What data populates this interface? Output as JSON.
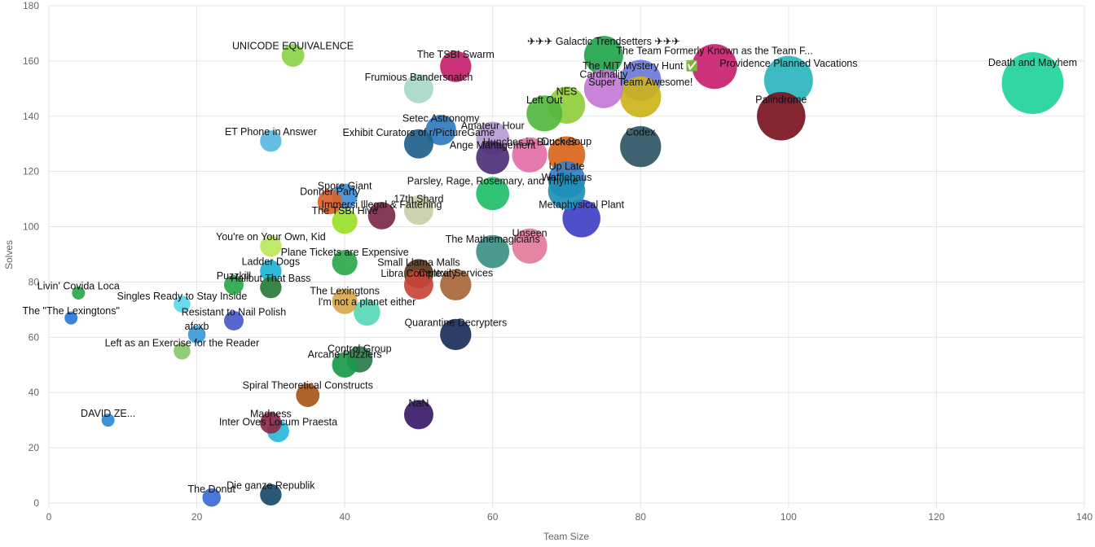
{
  "chart_data": {
    "type": "scatter",
    "subtype": "bubble",
    "title": "",
    "xlabel": "Team Size",
    "ylabel": "Solves",
    "xlim": [
      0,
      140
    ],
    "ylim": [
      0,
      180
    ],
    "x_ticks": [
      0,
      20,
      40,
      60,
      80,
      100,
      120,
      140
    ],
    "y_ticks": [
      0,
      20,
      40,
      60,
      80,
      100,
      120,
      140,
      160,
      180
    ],
    "grid": true,
    "legend": "none",
    "points": [
      {
        "label": "Death and Mayhem",
        "x": 133,
        "y": 152,
        "color": "#1fd39a"
      },
      {
        "label": "Providence Planned Vacations",
        "x": 100,
        "y": 153,
        "color": "#2bb5bd"
      },
      {
        "label": "The Team Formerly Known as the Team F...",
        "x": 90,
        "y": 158,
        "color": "#c8216e"
      },
      {
        "label": "Palindrome",
        "x": 99,
        "y": 140,
        "color": "#7b1422"
      },
      {
        "label": "✈✈✈ Galactic Trendsetters ✈✈✈",
        "x": 75,
        "y": 162,
        "color": "#1fa54a"
      },
      {
        "label": "The MIT Mystery Hunt ✅",
        "x": 80,
        "y": 153,
        "color": "#6c79d8"
      },
      {
        "label": "Cardinality",
        "x": 75,
        "y": 150,
        "color": "#c478d6"
      },
      {
        "label": "Super Team Awesome!",
        "x": 80,
        "y": 147,
        "color": "#cdb31c"
      },
      {
        "label": "Codex",
        "x": 80,
        "y": 129,
        "color": "#2e5563"
      },
      {
        "label": "NES",
        "x": 70,
        "y": 144,
        "color": "#8fce3c"
      },
      {
        "label": "Left Out",
        "x": 67,
        "y": 141,
        "color": "#52b83e"
      },
      {
        "label": "Hunches in Bunches",
        "x": 65,
        "y": 126,
        "color": "#e36fa8"
      },
      {
        "label": "Duck Soup",
        "x": 70,
        "y": 126,
        "color": "#d9661a"
      },
      {
        "label": "Up Late",
        "x": 70,
        "y": 117,
        "color": "#3a7ec7"
      },
      {
        "label": "Wafflehaus",
        "x": 70,
        "y": 113,
        "color": "#1f8fb8"
      },
      {
        "label": "Metaphysical Plant",
        "x": 72,
        "y": 103,
        "color": "#4040c8"
      },
      {
        "label": "The TSBI Swarm",
        "x": 55,
        "y": 158,
        "color": "#c7206a"
      },
      {
        "label": "Frumious Bandersnatch",
        "x": 50,
        "y": 150,
        "color": "#a8d8c8"
      },
      {
        "label": "Setec Astronomy",
        "x": 53,
        "y": 135,
        "color": "#2f7ac0"
      },
      {
        "label": "Exhibit Curators of r/PictureGame",
        "x": 50,
        "y": 130,
        "color": "#1e5f8a"
      },
      {
        "label": "Amateur Hour",
        "x": 60,
        "y": 132,
        "color": "#b69cd6"
      },
      {
        "label": "Ange Management",
        "x": 60,
        "y": 125,
        "color": "#4e2f7a"
      },
      {
        "label": "Parsley, Rage, Rosemary, and Thyme",
        "x": 60,
        "y": 112,
        "color": "#1fbf6a"
      },
      {
        "label": "Unseen",
        "x": 65,
        "y": 93,
        "color": "#e27b9c"
      },
      {
        "label": "The Mathemagicians",
        "x": 60,
        "y": 91,
        "color": "#3b8f84"
      },
      {
        "label": "UNICODE EQUIVALENCE",
        "x": 33,
        "y": 162,
        "color": "#8cd34a"
      },
      {
        "label": "ET Phone in Answer",
        "x": 30,
        "y": 131,
        "color": "#5ab8de"
      },
      {
        "label": "Spore Giant",
        "x": 40,
        "y": 111,
        "color": "#3f8ed6"
      },
      {
        "label": "Donner Party",
        "x": 38,
        "y": 109,
        "color": "#d9622a"
      },
      {
        "label": "Immersi Illegal & Fattening",
        "x": 45,
        "y": 104,
        "color": "#7b2a4a"
      },
      {
        "label": "17th Shard",
        "x": 50,
        "y": 106,
        "color": "#c8cfa8"
      },
      {
        "label": "The TSBI Hive",
        "x": 40,
        "y": 102,
        "color": "#9ae02a"
      },
      {
        "label": "You're on Your Own, Kid",
        "x": 30,
        "y": 93,
        "color": "#b8e85a"
      },
      {
        "label": "Plane Tickets are Expensive",
        "x": 40,
        "y": 87,
        "color": "#2ca84a"
      },
      {
        "label": "Ladder Dogs",
        "x": 30,
        "y": 84,
        "color": "#1fb2d6"
      },
      {
        "label": "Small Llama Malls",
        "x": 50,
        "y": 83,
        "color": "#5a3a1a"
      },
      {
        "label": "Libra Complexity",
        "x": 50,
        "y": 79,
        "color": "#c8453a"
      },
      {
        "label": "Central Services",
        "x": 55,
        "y": 79,
        "color": "#a8663a"
      },
      {
        "label": "Puzzkill",
        "x": 25,
        "y": 79,
        "color": "#2aa84a"
      },
      {
        "label": "Halibut That Bass",
        "x": 30,
        "y": 78,
        "color": "#2a7a3a"
      },
      {
        "label": "The Lexingtons",
        "x": 40,
        "y": 73,
        "color": "#d8a84a"
      },
      {
        "label": "I'm not a planet either",
        "x": 43,
        "y": 69,
        "color": "#5ad8b8"
      },
      {
        "label": "Resistant to Nail Polish",
        "x": 25,
        "y": 66,
        "color": "#4a5ac8"
      },
      {
        "label": "Quarantine Decrypters",
        "x": 55,
        "y": 61,
        "color": "#1a2e5a"
      },
      {
        "label": "Livin' Covida Loca",
        "x": 4,
        "y": 76,
        "color": "#2aa84a"
      },
      {
        "label": "The \"The Lexingtons\"",
        "x": 3,
        "y": 67,
        "color": "#2a7ad6"
      },
      {
        "label": "Singles Ready to Stay Inside",
        "x": 18,
        "y": 72,
        "color": "#5ad8e8"
      },
      {
        "label": "afcxb",
        "x": 20,
        "y": 61,
        "color": "#3a9ad6"
      },
      {
        "label": "Left as an Exercise for the Reader",
        "x": 18,
        "y": 55,
        "color": "#8ac86a"
      },
      {
        "label": "Control Group",
        "x": 42,
        "y": 52,
        "color": "#2a7a4a"
      },
      {
        "label": "Arcane Puzzlers",
        "x": 40,
        "y": 50,
        "color": "#1a9a4a"
      },
      {
        "label": "Spiral Theoretical Constructs",
        "x": 35,
        "y": 39,
        "color": "#a8561a"
      },
      {
        "label": "NaN",
        "x": 50,
        "y": 32,
        "color": "#3a1a6a"
      },
      {
        "label": "Inter Oves Locum Praesta",
        "x": 31,
        "y": 26,
        "color": "#2ab8d8"
      },
      {
        "label": "Madness",
        "x": 30,
        "y": 29,
        "color": "#8a2a4a"
      },
      {
        "label": "Die ganze Republik",
        "x": 30,
        "y": 3,
        "color": "#1a4a6a"
      },
      {
        "label": "The Donut",
        "x": 22,
        "y": 2,
        "color": "#3a6ad6"
      },
      {
        "label": "DAVID ZE...",
        "x": 8,
        "y": 30,
        "color": "#2a8ad6"
      }
    ]
  }
}
